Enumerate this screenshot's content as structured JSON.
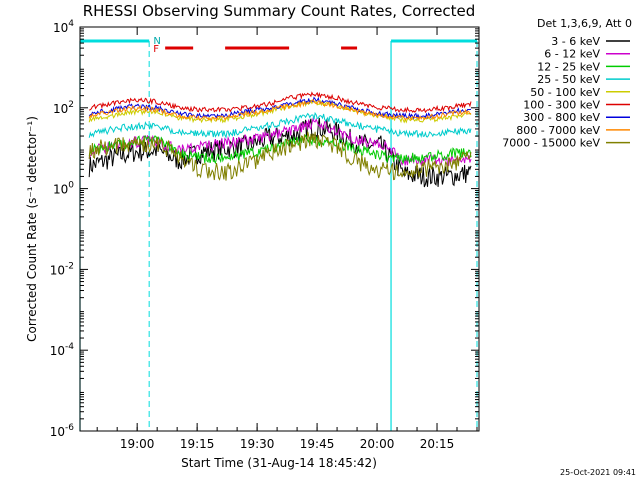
{
  "chart_data": {
    "type": "line",
    "title": "RHESSI Observing Summary Count Rates, Corrected",
    "xlabel": "Start Time (31-Aug-14 18:45:42)",
    "ylabel": "Corrected Count Rate (s⁻¹ detector⁻¹)",
    "y_scale": "log",
    "ylim_log10": [
      -6,
      4
    ],
    "x_unit": "UT minutes",
    "xlim": [
      "18:45:42",
      "20:25:30"
    ],
    "x_ticks": [
      "19:00",
      "19:15",
      "19:30",
      "19:45",
      "20:00",
      "20:15"
    ],
    "y_ticks": [
      {
        "exp": -6,
        "label": "10",
        "sup": "-6"
      },
      {
        "exp": -4,
        "label": "10",
        "sup": "-4"
      },
      {
        "exp": -2,
        "label": "10",
        "sup": "-2"
      },
      {
        "exp": 0,
        "label": "10",
        "sup": "0"
      },
      {
        "exp": 2,
        "label": "10",
        "sup": "2"
      },
      {
        "exp": 4,
        "label": "10",
        "sup": "4"
      }
    ],
    "legend_position": "outside-right",
    "legend_header": "Det 1,3,6,9, Att 0",
    "grid": false,
    "night_intervals": [
      [
        "18:45:42",
        "19:03:00"
      ],
      [
        "20:03:30",
        "20:25:00"
      ]
    ],
    "flare_flag_intervals": [
      [
        "19:07:00",
        "19:14:00"
      ],
      [
        "19:22:00",
        "19:38:00"
      ],
      [
        "19:51:00",
        "19:55:00"
      ]
    ],
    "saa_marker_label": "N",
    "flare_marker_label": "F",
    "series": [
      {
        "name": "3 - 6 keV",
        "color": "#000000",
        "log10_values": [
          0.55,
          0.75,
          0.9,
          0.95,
          0.7,
          0.9,
          1.0,
          1.05,
          1.25,
          1.3,
          1.55,
          1.4,
          1.1,
          1.05,
          0.35,
          0.3,
          0.3,
          0.4
        ]
      },
      {
        "name": "6 - 12 keV",
        "color": "#cc00cc",
        "log10_values": [
          0.9,
          1.05,
          1.15,
          1.2,
          0.95,
          1.05,
          1.1,
          1.2,
          1.3,
          1.45,
          1.6,
          1.45,
          1.2,
          1.1,
          0.7,
          0.7,
          0.7,
          0.75
        ]
      },
      {
        "name": "12 - 25 keV",
        "color": "#00cc00",
        "log10_values": [
          0.95,
          1.05,
          1.15,
          1.2,
          0.9,
          0.75,
          0.75,
          0.85,
          1.0,
          1.15,
          1.2,
          1.1,
          0.95,
          0.8,
          0.75,
          0.8,
          0.85,
          0.9
        ]
      },
      {
        "name": "25 - 50 keV",
        "color": "#00cccc",
        "log10_values": [
          1.35,
          1.45,
          1.55,
          1.55,
          1.4,
          1.35,
          1.35,
          1.45,
          1.55,
          1.7,
          1.8,
          1.7,
          1.55,
          1.45,
          1.35,
          1.35,
          1.4,
          1.45
        ]
      },
      {
        "name": "50 - 100 keV",
        "color": "#cccc00",
        "log10_values": [
          1.7,
          1.8,
          1.9,
          1.9,
          1.75,
          1.7,
          1.7,
          1.8,
          1.9,
          2.05,
          2.15,
          2.05,
          1.9,
          1.8,
          1.7,
          1.7,
          1.75,
          1.85
        ]
      },
      {
        "name": "100 - 300 keV",
        "color": "#dd0000",
        "log10_values": [
          2.0,
          2.1,
          2.2,
          2.15,
          2.0,
          1.95,
          1.95,
          2.0,
          2.1,
          2.25,
          2.35,
          2.25,
          2.1,
          2.0,
          1.95,
          1.95,
          2.0,
          2.1
        ]
      },
      {
        "name": "300 - 800 keV",
        "color": "#0000dd",
        "log10_values": [
          1.85,
          1.95,
          2.05,
          2.0,
          1.85,
          1.8,
          1.8,
          1.9,
          2.0,
          2.1,
          2.2,
          2.1,
          1.95,
          1.85,
          1.8,
          1.8,
          1.9,
          1.95
        ]
      },
      {
        "name": "800 - 7000 keV",
        "color": "#ff8800",
        "log10_values": [
          1.8,
          1.9,
          2.0,
          1.95,
          1.8,
          1.75,
          1.75,
          1.85,
          1.95,
          2.05,
          2.15,
          2.05,
          1.9,
          1.8,
          1.75,
          1.75,
          1.85,
          1.9
        ]
      },
      {
        "name": "7000 - 15000 keV",
        "color": "#808000",
        "log10_values": [
          0.95,
          1.05,
          1.15,
          1.1,
          0.85,
          0.45,
          0.4,
          0.55,
          0.85,
          1.05,
          1.25,
          1.05,
          0.65,
          0.45,
          0.4,
          0.5,
          0.6,
          0.75
        ]
      }
    ],
    "timestamp": "25-Oct-2021 09:41"
  }
}
